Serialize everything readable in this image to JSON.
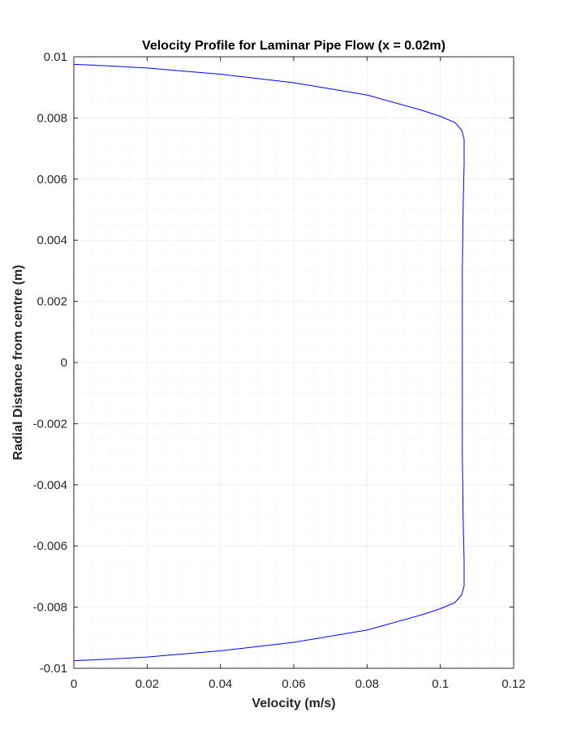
{
  "chart_data": {
    "type": "line",
    "title": "Velocity Profile for Laminar Pipe Flow (x = 0.02m)",
    "xlabel": "Velocity (m/s)",
    "ylabel": "Radial Distance from centre (m)",
    "xlim": [
      0,
      0.12
    ],
    "ylim": [
      -0.01,
      0.01
    ],
    "x_ticks": [
      0,
      0.02,
      0.04,
      0.06,
      0.08,
      0.1,
      0.12
    ],
    "x_tick_labels": [
      "0",
      "0.02",
      "0.04",
      "0.06",
      "0.08",
      "0.1",
      "0.12"
    ],
    "y_ticks": [
      -0.01,
      -0.008,
      -0.006,
      -0.004,
      -0.002,
      0,
      0.002,
      0.004,
      0.006,
      0.008,
      0.01
    ],
    "y_tick_labels": [
      "-0.01",
      "-0.008",
      "-0.006",
      "-0.004",
      "-0.002",
      "0",
      "0.002",
      "0.004",
      "0.006",
      "0.008",
      "0.01"
    ],
    "grid": true,
    "minor_grid": true,
    "colors": {
      "line": "#0000ff",
      "grid": "#e6e6e6",
      "axes": "#262626"
    },
    "series": [
      {
        "points": [
          [
            0.0,
            0.00975
          ],
          [
            0.005,
            0.00973
          ],
          [
            0.02,
            0.00963
          ],
          [
            0.04,
            0.00943
          ],
          [
            0.06,
            0.00915
          ],
          [
            0.08,
            0.00875
          ],
          [
            0.095,
            0.00825
          ],
          [
            0.1,
            0.00805
          ],
          [
            0.104,
            0.00785
          ],
          [
            0.1058,
            0.0076
          ],
          [
            0.1065,
            0.0073
          ],
          [
            0.1065,
            0.0065
          ],
          [
            0.1062,
            0.005
          ],
          [
            0.106,
            0.003
          ],
          [
            0.106,
            0.0
          ],
          [
            0.106,
            -0.003
          ],
          [
            0.1062,
            -0.005
          ],
          [
            0.1065,
            -0.0065
          ],
          [
            0.1065,
            -0.0073
          ],
          [
            0.1058,
            -0.0076
          ],
          [
            0.104,
            -0.00785
          ],
          [
            0.1,
            -0.00805
          ],
          [
            0.095,
            -0.00825
          ],
          [
            0.08,
            -0.00875
          ],
          [
            0.06,
            -0.00915
          ],
          [
            0.04,
            -0.00943
          ],
          [
            0.02,
            -0.00963
          ],
          [
            0.005,
            -0.00973
          ],
          [
            0.0,
            -0.00975
          ]
        ]
      }
    ]
  }
}
